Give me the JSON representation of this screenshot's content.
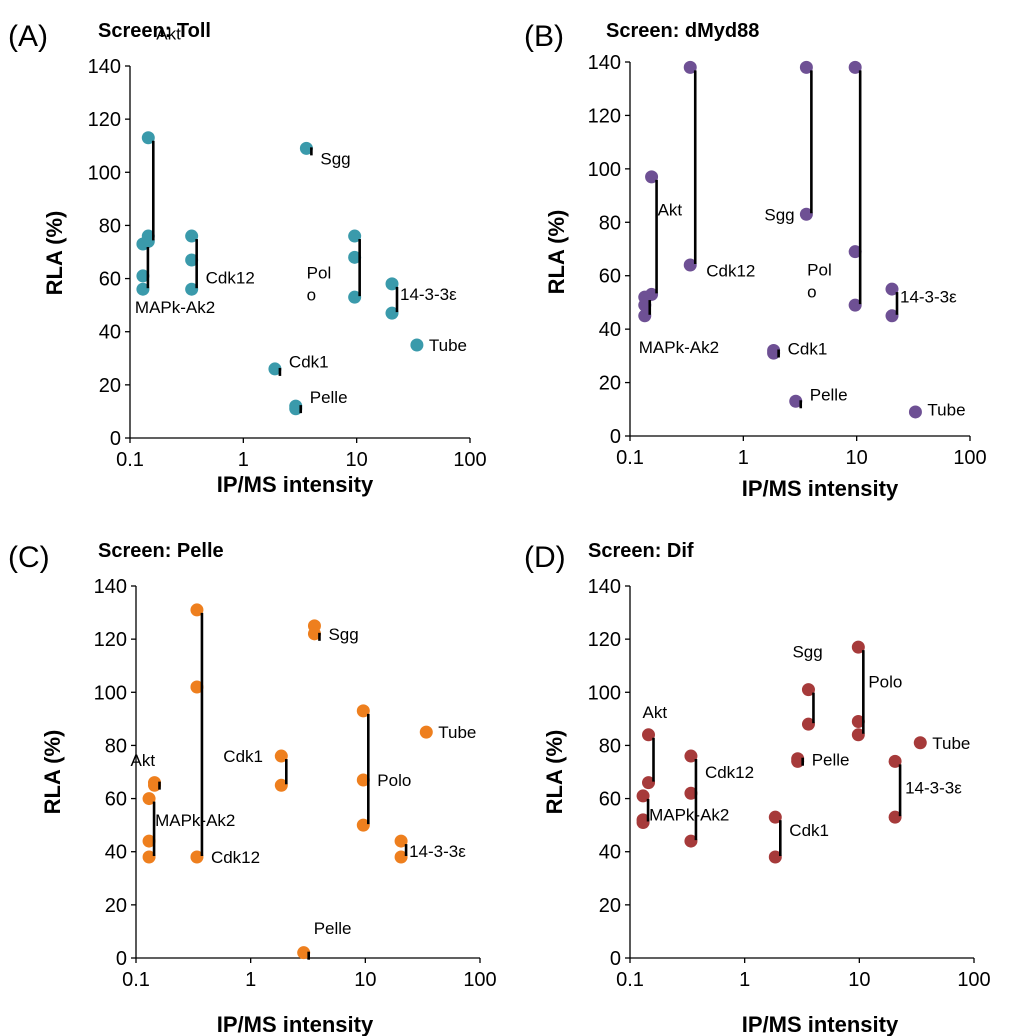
{
  "chart_data": [
    {
      "panel": "(A)",
      "title": "Screen: Toll",
      "type": "scatter",
      "xlabel": "IP/MS intensity",
      "ylabel": "RLA (%)",
      "xscale": "log",
      "xlim": [
        0.1,
        100
      ],
      "ylim": [
        0,
        140
      ],
      "xticks": [
        "0.1",
        "1",
        "10",
        "100"
      ],
      "yticks": [
        "0",
        "20",
        "40",
        "60",
        "80",
        "100",
        "120",
        "140"
      ],
      "color": "#3a9aab",
      "groups": [
        {
          "name": "Akt",
          "x": 0.145,
          "values": [
            113,
            76,
            74
          ]
        },
        {
          "name": "MAPk-Ak2",
          "x": 0.13,
          "values": [
            73,
            61,
            56
          ]
        },
        {
          "name": "Cdk12",
          "x": 0.35,
          "values": [
            76,
            67,
            56
          ]
        },
        {
          "name": "Sgg",
          "x": 3.6,
          "values": [
            109
          ]
        },
        {
          "name": "Polo",
          "x": 9.6,
          "values": [
            76,
            68,
            53
          ]
        },
        {
          "name": "14-3-3ε",
          "x": 20.5,
          "values": [
            58,
            47
          ]
        },
        {
          "name": "Tube",
          "x": 34,
          "values": [
            35
          ]
        },
        {
          "name": "Cdk1",
          "x": 1.9,
          "values": [
            26
          ]
        },
        {
          "name": "Pelle",
          "x": 2.9,
          "values": [
            12,
            11
          ]
        }
      ]
    },
    {
      "panel": "(B)",
      "title": "Screen: dMyd88",
      "type": "scatter",
      "xlabel": "IP/MS intensity",
      "ylabel": "RLA (%)",
      "xscale": "log",
      "xlim": [
        0.1,
        100
      ],
      "ylim": [
        0,
        140
      ],
      "xticks": [
        "0.1",
        "1",
        "10",
        "100"
      ],
      "yticks": [
        "0",
        "20",
        "40",
        "60",
        "80",
        "100",
        "120",
        "140"
      ],
      "color": "#6e5094",
      "groups": [
        {
          "name": "Akt",
          "x": 0.155,
          "values": [
            97,
            53
          ]
        },
        {
          "name": "MAPk-Ak2",
          "x": 0.135,
          "values": [
            52,
            49,
            45
          ]
        },
        {
          "name": "Cdk12",
          "x": 0.34,
          "values": [
            138,
            64
          ]
        },
        {
          "name": "Sgg",
          "x": 3.6,
          "values": [
            138,
            83
          ]
        },
        {
          "name": "Polo",
          "x": 9.7,
          "values": [
            138,
            69,
            49
          ]
        },
        {
          "name": "14-3-3ε",
          "x": 20.5,
          "values": [
            55,
            45
          ]
        },
        {
          "name": "Cdk1",
          "x": 1.85,
          "values": [
            32,
            31
          ]
        },
        {
          "name": "Pelle",
          "x": 2.9,
          "values": [
            13
          ]
        },
        {
          "name": "Tube",
          "x": 33,
          "values": [
            9
          ]
        }
      ]
    },
    {
      "panel": "(C)",
      "title": "Screen: Pelle",
      "type": "scatter",
      "xlabel": "IP/MS intensity",
      "ylabel": "RLA (%)",
      "xscale": "log",
      "xlim": [
        0.1,
        100
      ],
      "ylim": [
        0,
        140
      ],
      "xticks": [
        "0.1",
        "1",
        "10",
        "100"
      ],
      "yticks": [
        "0",
        "20",
        "40",
        "60",
        "80",
        "100",
        "120",
        "140"
      ],
      "color": "#ee7f1e",
      "groups": [
        {
          "name": "Cdk12",
          "x": 0.34,
          "values": [
            131,
            102,
            38
          ]
        },
        {
          "name": "Sgg",
          "x": 3.6,
          "values": [
            125,
            122
          ]
        },
        {
          "name": "Polo",
          "x": 9.6,
          "values": [
            93,
            67,
            50
          ]
        },
        {
          "name": "Tube",
          "x": 34,
          "values": [
            85
          ]
        },
        {
          "name": "Cdk1",
          "x": 1.85,
          "values": [
            76,
            65
          ]
        },
        {
          "name": "Akt",
          "x": 0.145,
          "values": [
            66,
            65
          ]
        },
        {
          "name": "MAPk-Ak2",
          "x": 0.13,
          "values": [
            60,
            44,
            38
          ]
        },
        {
          "name": "14-3-3ε",
          "x": 20.5,
          "values": [
            44,
            38
          ]
        },
        {
          "name": "Pelle",
          "x": 2.9,
          "values": [
            2
          ]
        }
      ]
    },
    {
      "panel": "(D)",
      "title": "Screen: Dif",
      "type": "scatter",
      "xlabel": "IP/MS intensity",
      "ylabel": "RLA (%)",
      "xscale": "log",
      "xlim": [
        0.1,
        100
      ],
      "ylim": [
        0,
        140
      ],
      "xticks": [
        "0.1",
        "1",
        "10",
        "100"
      ],
      "yticks": [
        "0",
        "20",
        "40",
        "60",
        "80",
        "100",
        "120",
        "140"
      ],
      "color": "#a63a3a",
      "groups": [
        {
          "name": "Akt",
          "x": 0.145,
          "values": [
            84,
            66
          ]
        },
        {
          "name": "MAPk-Ak2",
          "x": 0.13,
          "values": [
            61,
            52,
            51
          ]
        },
        {
          "name": "Cdk12",
          "x": 0.34,
          "values": [
            76,
            62,
            44
          ]
        },
        {
          "name": "Sgg",
          "x": 3.6,
          "values": [
            101,
            88
          ]
        },
        {
          "name": "Polo",
          "x": 9.8,
          "values": [
            117,
            89,
            84
          ]
        },
        {
          "name": "Tube",
          "x": 34,
          "values": [
            81
          ]
        },
        {
          "name": "Pelle",
          "x": 2.9,
          "values": [
            75,
            74
          ]
        },
        {
          "name": "14-3-3ε",
          "x": 20.5,
          "values": [
            74,
            53
          ]
        },
        {
          "name": "Cdk1",
          "x": 1.85,
          "values": [
            53,
            38
          ]
        }
      ]
    }
  ]
}
